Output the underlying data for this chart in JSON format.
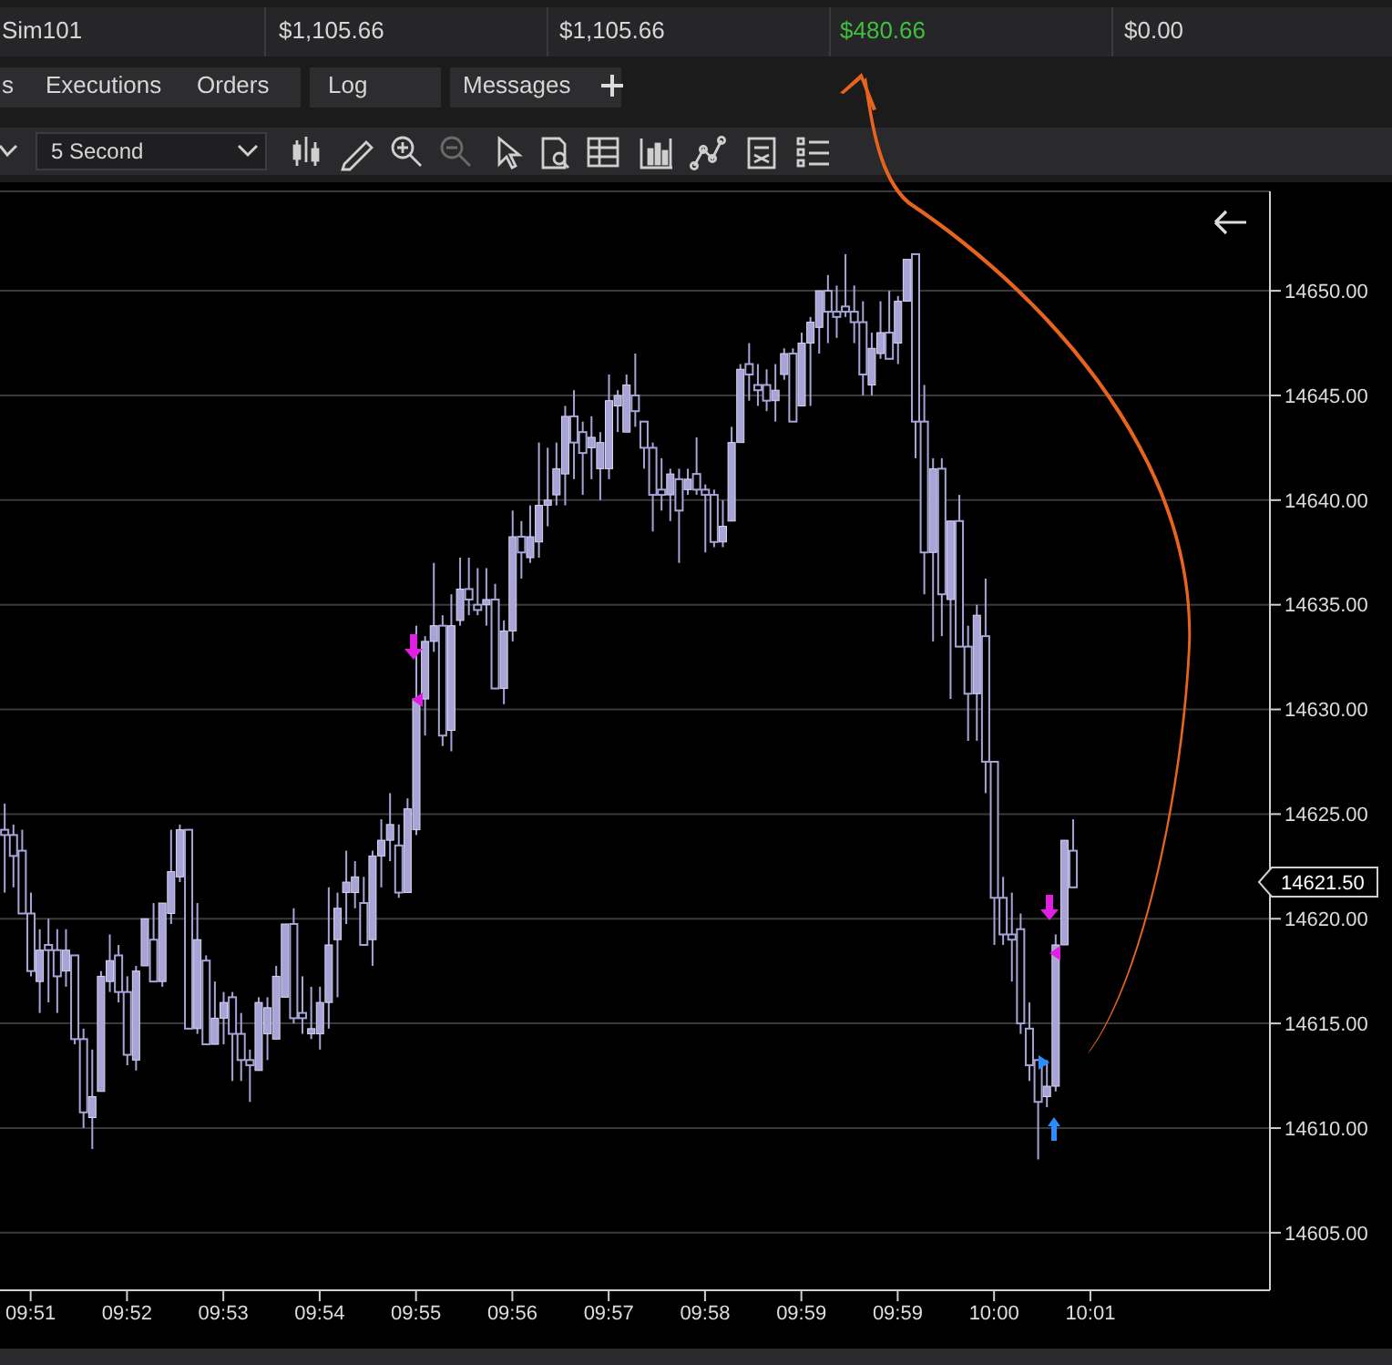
{
  "chart_data": {
    "type": "candlestick",
    "categories": [
      null,
      null,
      null,
      "09:51",
      null,
      null,
      null,
      null,
      null,
      null,
      null,
      null,
      null,
      null,
      "09:52",
      null,
      null,
      null,
      null,
      null,
      null,
      null,
      null,
      null,
      null,
      "09:53",
      null,
      null,
      null,
      null,
      null,
      null,
      null,
      null,
      null,
      null,
      "09:54",
      null,
      null,
      null,
      null,
      null,
      null,
      null,
      null,
      null,
      null,
      "09:55",
      null,
      null,
      null,
      null,
      null,
      null,
      null,
      null,
      null,
      null,
      "09:56",
      null,
      null,
      null,
      null,
      null,
      null,
      null,
      null,
      null,
      null,
      "09:57",
      null,
      null,
      null,
      null,
      null,
      null,
      null,
      null,
      null,
      null,
      "09:58",
      null,
      null,
      null,
      null,
      null,
      null,
      null,
      null,
      null,
      null,
      "09:59",
      null,
      null,
      null,
      null,
      null,
      null,
      null,
      null,
      null,
      null,
      "09:59",
      null,
      null,
      null,
      null,
      null,
      null,
      null,
      null,
      null,
      null,
      "10:00",
      null,
      null,
      null,
      null,
      null,
      null,
      null,
      null,
      null,
      null,
      "10:01",
      null,
      null,
      null,
      null,
      null,
      null,
      null,
      null,
      null,
      null,
      null,
      null,
      null,
      null,
      null,
      null,
      null,
      null,
      null,
      null
    ],
    "color": "#a8a4d8",
    "ohlc": [
      [
        14624.25,
        14625.5,
        14621.25,
        14624
      ],
      [
        14624,
        14624.5,
        14621.5,
        14623
      ],
      [
        14623.25,
        14624.25,
        14620.25,
        14620.25
      ],
      [
        14620.25,
        14621.25,
        14617.25,
        14617.5
      ],
      [
        14617,
        14619.5,
        14615.5,
        14618.5
      ],
      [
        14618.75,
        14620,
        14616,
        14618.5
      ],
      [
        14618.5,
        14619.5,
        14615.5,
        14617.25
      ],
      [
        14617.5,
        14619.5,
        14616.75,
        14618.5
      ],
      [
        14618.25,
        14618.25,
        14614,
        14614.25
      ],
      [
        14614.25,
        14614.75,
        14610,
        14610.75
      ],
      [
        14610.5,
        14613.75,
        14609,
        14611.5
      ],
      [
        14611.75,
        14617.5,
        14611.75,
        14617.25
      ],
      [
        14617,
        14619.25,
        14616.5,
        14618
      ],
      [
        14618.25,
        14618.75,
        14616,
        14616.5
      ],
      [
        14616.5,
        14617.25,
        14613,
        14613.5
      ],
      [
        14613.25,
        14617.75,
        14612.75,
        14617.5
      ],
      [
        14617.75,
        14620,
        14617.75,
        14620
      ],
      [
        14619,
        14620.75,
        14617,
        14617
      ],
      [
        14617,
        14620.75,
        14616.75,
        14620.75
      ],
      [
        14620.25,
        14624.25,
        14619.75,
        14622.25
      ],
      [
        14622,
        14624.5,
        14621.75,
        14624.25
      ],
      [
        14624.25,
        14624.25,
        14614.75,
        14614.75
      ],
      [
        14614.75,
        14620.75,
        14614.5,
        14619
      ],
      [
        14618,
        14618.25,
        14614,
        14614
      ],
      [
        14614,
        14617,
        14614,
        14615.25
      ],
      [
        14615.25,
        14616.5,
        14614,
        14616
      ],
      [
        14616.25,
        14616.5,
        14612.25,
        14614.5
      ],
      [
        14614.5,
        14615.5,
        14612.25,
        14613.25
      ],
      [
        14613.25,
        14613.75,
        14611.25,
        14613
      ],
      [
        14612.75,
        14616.25,
        14612.75,
        14616
      ],
      [
        14614.5,
        14616.25,
        14613.25,
        14615.75
      ],
      [
        14614.25,
        14617.75,
        14614.25,
        14617.25
      ],
      [
        14616.25,
        14619.75,
        14616.25,
        14619.75
      ],
      [
        14619.75,
        14620.5,
        14615,
        14615.25
      ],
      [
        14615.5,
        14617.25,
        14614.5,
        14615.25
      ],
      [
        14614.5,
        14616.75,
        14614.25,
        14614.75
      ],
      [
        14614.5,
        14616.75,
        14613.75,
        14616
      ],
      [
        14616,
        14621.5,
        14614.75,
        14618.75
      ],
      [
        14619,
        14621.25,
        14616.25,
        14620.5
      ],
      [
        14621.25,
        14623.25,
        14619.75,
        14621.75
      ],
      [
        14621.25,
        14622.75,
        14620.5,
        14622
      ],
      [
        14620.75,
        14622,
        14618.75,
        14618.75
      ],
      [
        14619,
        14623.25,
        14617.75,
        14623
      ],
      [
        14623,
        14624.75,
        14621.5,
        14623.75
      ],
      [
        14623.75,
        14626,
        14622.75,
        14624.5
      ],
      [
        14623.5,
        14624.5,
        14621,
        14621.25
      ],
      [
        14621.25,
        14625.75,
        14621.25,
        14625.25
      ],
      [
        14624.25,
        14634,
        14624,
        14630.5
      ],
      [
        14630.5,
        14633.5,
        14628.75,
        14633.25
      ],
      [
        14633.25,
        14637,
        14632.75,
        14634
      ],
      [
        14634,
        14634.5,
        14628.25,
        14628.75
      ],
      [
        14629,
        14635.5,
        14628,
        14634
      ],
      [
        14634.25,
        14637.25,
        14634,
        14635.75
      ],
      [
        14635.75,
        14637.25,
        14634.5,
        14635.25
      ],
      [
        14635,
        14636.75,
        14634.5,
        14634.75
      ],
      [
        14635,
        14636.75,
        14634,
        14635.25
      ],
      [
        14635.25,
        14636,
        14631,
        14631
      ],
      [
        14631,
        14634.25,
        14630.25,
        14633.75
      ],
      [
        14633.75,
        14639.5,
        14633.25,
        14638.25
      ],
      [
        14638.25,
        14639,
        14636.25,
        14637.5
      ],
      [
        14637.25,
        14639.75,
        14637,
        14638.25
      ],
      [
        14638,
        14642.75,
        14637.25,
        14639.75
      ],
      [
        14639.75,
        14642.5,
        14638.75,
        14640
      ],
      [
        14640.25,
        14642.75,
        14639.75,
        14641.5
      ],
      [
        14641.25,
        14644.5,
        14639.75,
        14644
      ],
      [
        14644,
        14645.25,
        14641,
        14642.75
      ],
      [
        14643.25,
        14643.75,
        14640.25,
        14642.25
      ],
      [
        14642.5,
        14644,
        14641,
        14643
      ],
      [
        14641.5,
        14643.25,
        14640,
        14642.75
      ],
      [
        14641.5,
        14646,
        14641,
        14644.75
      ],
      [
        14644.5,
        14645.25,
        14643.25,
        14645
      ],
      [
        14643.25,
        14646,
        14643.25,
        14645.5
      ],
      [
        14645,
        14647,
        14643.5,
        14644.25
      ],
      [
        14643.75,
        14643.75,
        14641.5,
        14642.5
      ],
      [
        14642.5,
        14642.75,
        14638.5,
        14640.25
      ],
      [
        14640.5,
        14642,
        14639.5,
        14640.25
      ],
      [
        14640.25,
        14641.5,
        14639,
        14641.25
      ],
      [
        14641,
        14641.5,
        14637,
        14639.5
      ],
      [
        14640.5,
        14641.5,
        14640.25,
        14641
      ],
      [
        14641.25,
        14643,
        14640.25,
        14640.5
      ],
      [
        14640.5,
        14640.75,
        14637.5,
        14640.25
      ],
      [
        14640.25,
        14640.5,
        14637.75,
        14638
      ],
      [
        14638,
        14640,
        14637.75,
        14638.75
      ],
      [
        14639,
        14643.5,
        14639,
        14642.75
      ],
      [
        14642.75,
        14646.5,
        14642.75,
        14646.25
      ],
      [
        14646.5,
        14647.5,
        14644.75,
        14646
      ],
      [
        14645.5,
        14646.5,
        14644.5,
        14645.25
      ],
      [
        14645.5,
        14646.25,
        14644.25,
        14644.75
      ],
      [
        14644.75,
        14646.5,
        14643.75,
        14645.25
      ],
      [
        14646,
        14647.25,
        14645.75,
        14647
      ],
      [
        14647,
        14647.25,
        14643.75,
        14643.75
      ],
      [
        14644.5,
        14648,
        14644.5,
        14647.5
      ],
      [
        14647.5,
        14648.75,
        14644.5,
        14648.5
      ],
      [
        14648.25,
        14650,
        14647,
        14650
      ],
      [
        14650,
        14650.75,
        14647.5,
        14649
      ],
      [
        14649,
        14650.25,
        14647.75,
        14648.75
      ],
      [
        14649.25,
        14651.75,
        14648.75,
        14649
      ],
      [
        14649,
        14650.25,
        14647.5,
        14648.5
      ],
      [
        14648.5,
        14649.5,
        14645,
        14646
      ],
      [
        14645.5,
        14648,
        14645,
        14647.25
      ],
      [
        14647,
        14649.5,
        14646.75,
        14648
      ],
      [
        14648,
        14650,
        14646.75,
        14646.75
      ],
      [
        14647.5,
        14649.75,
        14646.5,
        14649.5
      ],
      [
        14649.5,
        14651.5,
        14649.5,
        14651.5
      ],
      [
        14651.75,
        14651.75,
        14642,
        14643.75
      ],
      [
        14643.75,
        14645.5,
        14635.5,
        14637.5
      ],
      [
        14637.5,
        14642,
        14633.25,
        14641.5
      ],
      [
        14641.5,
        14642,
        14633.5,
        14635.5
      ],
      [
        14635.25,
        14639,
        14630.5,
        14639
      ],
      [
        14639,
        14640.25,
        14633,
        14633
      ],
      [
        14633,
        14634,
        14628.5,
        14630.75
      ],
      [
        14630.75,
        14635,
        14628.5,
        14634.5
      ],
      [
        14633.5,
        14636.25,
        14626,
        14627.5
      ],
      [
        14627.5,
        14627.5,
        14618.75,
        14621
      ],
      [
        14621,
        14622,
        14618.75,
        14619.25
      ],
      [
        14619.25,
        14621.25,
        14617,
        14619
      ],
      [
        14619.5,
        14620.25,
        14614.5,
        14615
      ],
      [
        14614.75,
        14616,
        14612.25,
        14613
      ],
      [
        14613.25,
        14613.25,
        14608.5,
        14611.25
      ],
      [
        14611.5,
        14613.25,
        14611,
        14612
      ],
      [
        14612,
        14619.25,
        14611.75,
        14618.75
      ],
      [
        14618.75,
        14623.75,
        14618.75,
        14623.75
      ],
      [
        14623.25,
        14624.75,
        14621.5,
        14621.5
      ],
      null,
      null,
      null,
      null,
      null,
      null,
      null,
      null,
      null,
      null,
      null,
      null,
      null,
      null,
      null,
      null,
      null,
      null,
      null,
      null,
      null,
      null
    ],
    "ylim": [
      14602.25,
      14654.75
    ],
    "yticks": [
      {
        "value": 14605,
        "label": "14605.00"
      },
      {
        "value": 14610,
        "label": "14610.00"
      },
      {
        "value": 14615,
        "label": "14615.00"
      },
      {
        "value": 14620,
        "label": "14620.00"
      },
      {
        "value": 14625,
        "label": "14625.00"
      },
      {
        "value": 14630,
        "label": "14630.00"
      },
      {
        "value": 14635,
        "label": "14635.00"
      },
      {
        "value": 14640,
        "label": "14640.00"
      },
      {
        "value": 14645,
        "label": "14645.00"
      },
      {
        "value": 14650,
        "label": "14650.00"
      }
    ],
    "grid": "y",
    "annotations": [
      "s",
      "Executions",
      "Orders",
      "Log",
      "Messages",
      "5 Second",
      "Sim101",
      "$1,105.66",
      "$1,105.66",
      "$480.66",
      "$0.00",
      "14621.50"
    ]
  }
}
